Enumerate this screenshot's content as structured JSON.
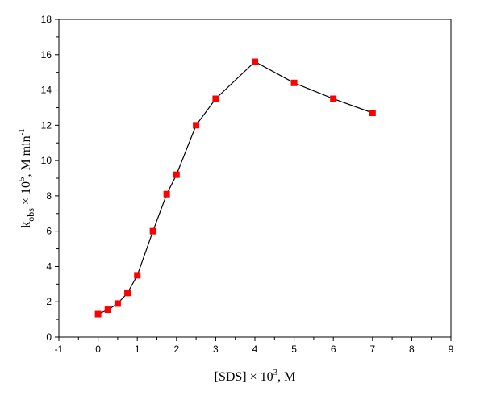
{
  "chart_data": {
    "type": "line",
    "title": "",
    "xlabel": {
      "pre": "[SDS] × 10",
      "sup": "3",
      "post": ", M"
    },
    "ylabel": {
      "k": "k",
      "sub": "obs",
      "mid": " × 10",
      "sup1": "5",
      "unit": ", M min",
      "sup2": "-1"
    },
    "xlim": [
      -1,
      9
    ],
    "ylim": [
      0,
      18
    ],
    "xticks": [
      -1,
      0,
      1,
      2,
      3,
      4,
      5,
      6,
      7,
      8,
      9
    ],
    "yticks": [
      0,
      2,
      4,
      6,
      8,
      10,
      12,
      14,
      16,
      18
    ],
    "grid": false,
    "legend": "none",
    "series": [
      {
        "color": "#ff0000",
        "line_color": "#000000",
        "marker": "square",
        "x": [
          0,
          0.25,
          0.5,
          0.75,
          1.0,
          1.4,
          1.75,
          2.0,
          2.5,
          3.0,
          4.0,
          5.0,
          6.0,
          7.0
        ],
        "y": [
          1.3,
          1.55,
          1.9,
          2.5,
          3.5,
          6.0,
          8.1,
          9.2,
          12.0,
          13.5,
          15.6,
          14.4,
          13.5,
          12.7
        ]
      }
    ]
  }
}
